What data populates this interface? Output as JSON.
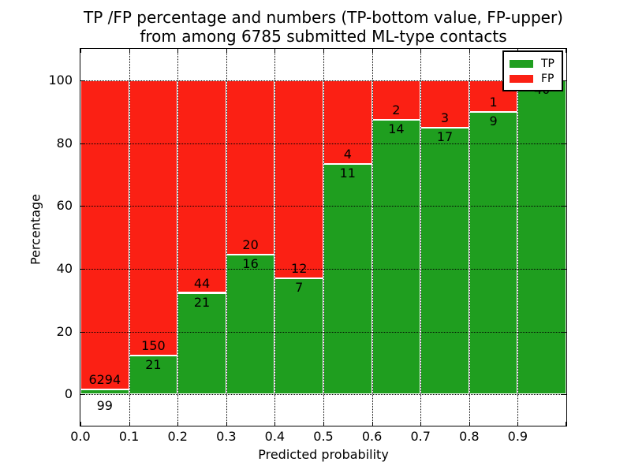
{
  "title": {
    "line1": "TP /FP percentage and numbers (TP-bottom value, FP-upper)",
    "line2": "from among 6785 submitted ML-type contacts"
  },
  "chart_data": {
    "type": "bar",
    "stacked": true,
    "orientation": "vertical",
    "title": "TP /FP percentage and numbers (TP-bottom value, FP-upper) from among 6785 submitted ML-type contacts",
    "xlabel": "Predicted probability",
    "ylabel": "Percentage",
    "xlim": [
      0.0,
      1.0
    ],
    "ylim": [
      -10,
      110
    ],
    "grid": "dotted",
    "legend_position": "upper right",
    "total_contacts": 6785,
    "x_tick_labels": [
      "0.0",
      "0.1",
      "0.2",
      "0.3",
      "0.4",
      "0.5",
      "0.6",
      "0.7",
      "0.8",
      "0.9"
    ],
    "y_tick_values": [
      0,
      20,
      40,
      60,
      80,
      100
    ],
    "bin_width": 0.1,
    "categories": [
      "0.0-0.1",
      "0.1-0.2",
      "0.2-0.3",
      "0.3-0.4",
      "0.4-0.5",
      "0.5-0.6",
      "0.6-0.7",
      "0.7-0.8",
      "0.8-0.9",
      "0.9-1.0"
    ],
    "series": [
      {
        "name": "TP",
        "color": "#1f9e1f",
        "counts": [
          99,
          21,
          21,
          16,
          7,
          11,
          14,
          17,
          9,
          40
        ],
        "labels": [
          "99",
          "21",
          "21",
          "16",
          "7",
          "11",
          "14",
          "17",
          "9",
          "40"
        ]
      },
      {
        "name": "FP",
        "color": "#fb2014",
        "counts": [
          6294,
          150,
          44,
          20,
          12,
          4,
          2,
          3,
          1,
          0
        ],
        "labels": [
          "6294",
          "150",
          "44",
          "20",
          "12",
          "4",
          "2",
          "3",
          "1",
          ""
        ]
      }
    ],
    "tp_percentages": [
      1.5,
      12.3,
      32.3,
      44.4,
      36.8,
      73.3,
      87.5,
      85.0,
      90.0,
      100.0
    ],
    "legend": {
      "entries": [
        {
          "label": "TP",
          "color": "#1f9e1f"
        },
        {
          "label": "FP",
          "color": "#fb2014"
        }
      ]
    }
  }
}
